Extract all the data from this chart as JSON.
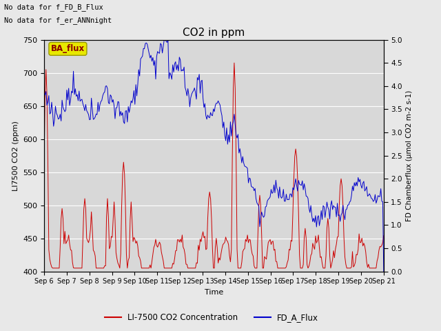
{
  "title": "CO2 in ppm",
  "xlabel": "Time",
  "ylabel_left": "LI7500 CO2 (ppm)",
  "ylabel_right": "FD Chamberflux (μmol CO2 m-2 s-1)",
  "ylim_left": [
    400,
    750
  ],
  "ylim_right": [
    0.0,
    5.0
  ],
  "yticks_left": [
    400,
    450,
    500,
    550,
    600,
    650,
    700,
    750
  ],
  "yticks_right": [
    0.0,
    0.5,
    1.0,
    1.5,
    2.0,
    2.5,
    3.0,
    3.5,
    4.0,
    4.5,
    5.0
  ],
  "xtick_labels": [
    "Sep 6",
    "Sep 7",
    "Sep 8",
    "Sep 9",
    "Sep 10",
    "Sep 11",
    "Sep 12",
    "Sep 13",
    "Sep 14",
    "Sep 15",
    "Sep 16",
    "Sep 17",
    "Sep 18",
    "Sep 19",
    "Sep 20",
    "Sep 21"
  ],
  "note1": "No data for f_FD_B_Flux",
  "note2": "No data for f_er_ANNnight",
  "legend_box_label": "BA_flux",
  "legend_box_color": "#e8e800",
  "legend_box_text_color": "#8b0000",
  "color_red": "#cc0000",
  "color_blue": "#0000cc",
  "background_color": "#d8d8d8",
  "line_label_red": "LI-7500 CO2 Concentration",
  "line_label_blue": "FD_A_Flux",
  "fig_background": "#e8e8e8",
  "grid_color": "#ffffff",
  "n_days": 15,
  "n_pts": 360
}
